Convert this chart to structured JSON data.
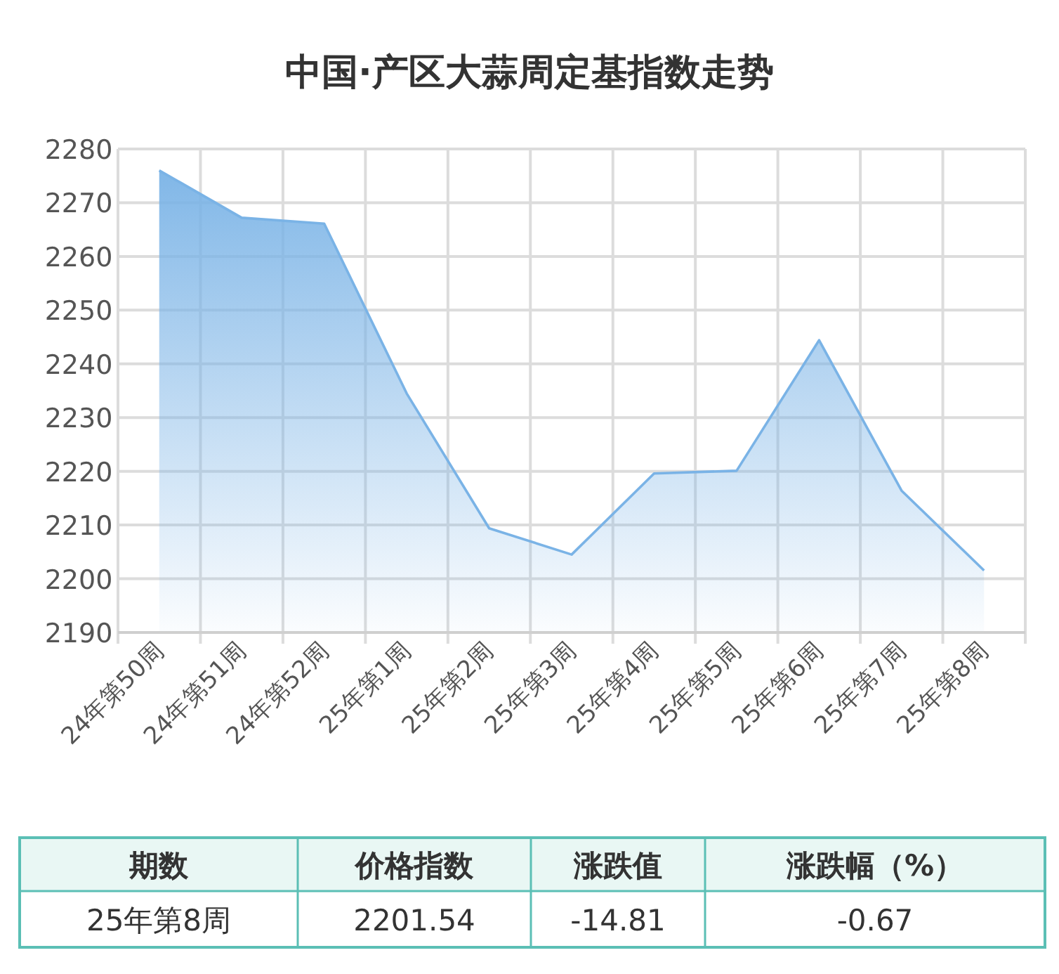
{
  "chart_data": {
    "type": "area",
    "title": "中国·产区大蒜周定基指数走势",
    "categories": [
      "24年第50周",
      "24年第51周",
      "24年第52周",
      "25年第1周",
      "25年第2周",
      "25年第3周",
      "25年第4周",
      "25年第5周",
      "25年第6周",
      "25年第7周",
      "25年第8周"
    ],
    "series": [
      {
        "color": "#7ab3e6",
        "values": [
          2276,
          2267.2,
          2266.1,
          2234.5,
          2209.4,
          2204.5,
          2219.6,
          2220.1,
          2244.4,
          2216.4,
          2201.54
        ]
      }
    ],
    "ylim": [
      2190,
      2280
    ],
    "yticks": [
      2190,
      2200,
      2210,
      2220,
      2230,
      2240,
      2250,
      2260,
      2270,
      2280
    ],
    "grid": true,
    "marker": "none",
    "line_style": "solid",
    "annotations": [
      "期数",
      "价格指数",
      "涨跌值",
      "涨跌幅（%）",
      "25年第8周",
      "2201.54",
      "-14.81",
      "-0.67"
    ]
  }
}
